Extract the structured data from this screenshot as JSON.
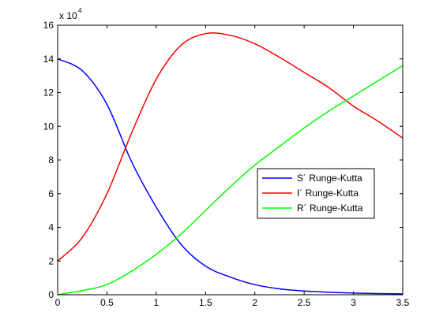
{
  "chart_data": {
    "type": "line",
    "title": "",
    "xlabel": "",
    "ylabel": "",
    "xlim": [
      0,
      3.5
    ],
    "ylim": [
      0,
      16
    ],
    "y_multiplier_base": "x 10",
    "y_multiplier_exponent": "4",
    "x_ticks": [
      "0",
      "0.5",
      "1",
      "1.5",
      "2",
      "2.5",
      "3",
      "3.5"
    ],
    "y_ticks": [
      "0",
      "2",
      "4",
      "6",
      "8",
      "10",
      "12",
      "14",
      "16"
    ],
    "grid": false,
    "legend_position": "center-right",
    "x": [
      0,
      0.25,
      0.5,
      0.75,
      1.0,
      1.25,
      1.5,
      1.75,
      2.0,
      2.25,
      2.5,
      2.75,
      3.0,
      3.25,
      3.5
    ],
    "series": [
      {
        "name": "S´ Runge-Kutta",
        "color": "#0000ff",
        "values": [
          14.0,
          13.3,
          11.3,
          7.9,
          5.2,
          3.0,
          1.7,
          1.05,
          0.6,
          0.35,
          0.22,
          0.15,
          0.1,
          0.07,
          0.05
        ]
      },
      {
        "name": "I´ Runge-Kutta",
        "color": "#ff0000",
        "values": [
          2.0,
          3.4,
          6.0,
          9.6,
          12.8,
          14.8,
          15.5,
          15.4,
          14.9,
          14.1,
          13.2,
          12.3,
          11.2,
          10.3,
          9.3
        ]
      },
      {
        "name": "R´ Runge-Kutta",
        "color": "#00ff00",
        "values": [
          0.0,
          0.25,
          0.6,
          1.4,
          2.4,
          3.6,
          5.0,
          6.4,
          7.7,
          8.8,
          9.9,
          10.9,
          11.8,
          12.7,
          13.6
        ]
      }
    ]
  }
}
